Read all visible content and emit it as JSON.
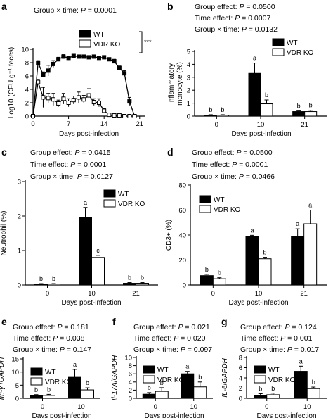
{
  "chart_data": [
    {
      "panel": "a",
      "type": "line",
      "stats": [
        "Group × time: P = 0.0001"
      ],
      "significance": "***",
      "xlabel": "Days post-infection",
      "ylabel": "Log10 (CFU g⁻¹ feces)",
      "xlim": [
        0,
        22
      ],
      "ylim": [
        0,
        10
      ],
      "xticks": [
        0,
        7,
        14,
        21
      ],
      "xtick_labels": [
        "0",
        "7",
        "14",
        "21"
      ],
      "yticks": [
        0,
        2,
        4,
        6,
        8,
        10
      ],
      "ytick_labels": [
        "0",
        "2",
        "4",
        "6",
        "8",
        "10"
      ],
      "legend": [
        "WT",
        "VDR KO"
      ],
      "series": [
        {
          "name": "WT",
          "marker": "filled-square",
          "x": [
            0,
            1,
            2,
            3,
            4,
            5,
            6,
            7,
            8,
            9,
            10,
            11,
            12,
            13,
            14,
            15,
            16,
            17,
            18,
            19,
            20
          ],
          "y": [
            0,
            8.0,
            6.2,
            6.8,
            7.8,
            8.5,
            8.9,
            8.7,
            9.0,
            8.9,
            8.9,
            8.8,
            8.9,
            8.7,
            8.8,
            8.5,
            8.2,
            7.2,
            6.4,
            2.2,
            0
          ],
          "err": [
            0,
            0.3,
            0.4,
            0.8,
            0.5,
            0.3,
            0.3,
            0.3,
            0.2,
            0.2,
            0.2,
            0.2,
            0.2,
            0.2,
            0.2,
            0.2,
            0.3,
            0.3,
            0.4,
            0.6,
            0
          ]
        },
        {
          "name": "VDR KO",
          "marker": "open-square",
          "x": [
            0,
            1,
            2,
            3,
            4,
            5,
            6,
            7,
            8,
            9,
            10,
            11,
            12,
            13,
            14,
            15,
            16,
            17,
            18,
            19,
            20
          ],
          "y": [
            0,
            5.1,
            2.8,
            2.7,
            2.5,
            1.9,
            2.6,
            2.0,
            2.4,
            2.8,
            2.5,
            3.1,
            2.1,
            2.0,
            0.8,
            0.2,
            0.1,
            0.1,
            0,
            0,
            0
          ],
          "err": [
            0,
            0.4,
            1.5,
            0.7,
            0.9,
            0.5,
            0.8,
            0.6,
            0.6,
            0.8,
            0.6,
            1.0,
            0.5,
            0.6,
            0.3,
            0.2,
            0.1,
            0.1,
            0,
            0,
            0
          ]
        }
      ]
    },
    {
      "panel": "b",
      "type": "bar",
      "stats": [
        "Group effect: P = 0.0500",
        "Time effect: P = 0.0007",
        "Group × time: P = 0.0132"
      ],
      "xlabel": "Days post-infection",
      "ylabel": "Inflammatory monocyte (%)",
      "categories": [
        "0",
        "10",
        "21"
      ],
      "ylim": [
        0,
        5
      ],
      "yticks": [
        0,
        1,
        2,
        3,
        4,
        5
      ],
      "ytick_labels": [
        "0",
        "1",
        "2",
        "3",
        "4",
        "5"
      ],
      "legend": [
        "WT",
        "VDR KO"
      ],
      "series": [
        {
          "name": "WT",
          "values": [
            0.08,
            3.3,
            0.35
          ],
          "err": [
            0.03,
            0.8,
            0.05
          ]
        },
        {
          "name": "VDR KO",
          "values": [
            0.08,
            0.95,
            0.35
          ],
          "err": [
            0.03,
            0.3,
            0.1
          ]
        }
      ],
      "labels": [
        [
          "b",
          "b"
        ],
        [
          "a",
          "b"
        ],
        [
          "b",
          "b"
        ]
      ]
    },
    {
      "panel": "c",
      "type": "bar",
      "stats": [
        "Group effect: P = 0.0415",
        "Time effect: P = 0.0001",
        "Group × time: P = 0.0127"
      ],
      "xlabel": "Days post-infection",
      "ylabel": "Neutrophil (%)",
      "categories": [
        "0",
        "10",
        "21"
      ],
      "ylim": [
        0,
        3
      ],
      "yticks": [
        0,
        1,
        2,
        3
      ],
      "ytick_labels": [
        "0",
        "1",
        "2",
        "3"
      ],
      "legend": [
        "WT",
        "VDR KO"
      ],
      "series": [
        {
          "name": "WT",
          "values": [
            0.03,
            1.95,
            0.05
          ],
          "err": [
            0.01,
            0.3,
            0.02
          ]
        },
        {
          "name": "VDR KO",
          "values": [
            0.03,
            0.8,
            0.05
          ],
          "err": [
            0.01,
            0.06,
            0.02
          ]
        }
      ],
      "labels": [
        [
          "b",
          "b"
        ],
        [
          "a",
          "c"
        ],
        [
          "b",
          "b"
        ]
      ]
    },
    {
      "panel": "d",
      "type": "bar",
      "stats": [
        "Group effect: P = 0.0500",
        "Time effect: P = 0.0001",
        "Group × time: P = 0.0466"
      ],
      "xlabel": "Days post-infection",
      "ylabel": "CD3+ (%)",
      "categories": [
        "0",
        "10",
        "21"
      ],
      "ylim": [
        0,
        80
      ],
      "yticks": [
        0,
        20,
        40,
        60,
        80
      ],
      "ytick_labels": [
        "0",
        "20",
        "40",
        "60",
        "80"
      ],
      "legend": [
        "WT",
        "VDR KO"
      ],
      "series": [
        {
          "name": "WT",
          "values": [
            7.5,
            39,
            39
          ],
          "err": [
            1.0,
            0.8,
            6
          ]
        },
        {
          "name": "VDR KO",
          "values": [
            5.0,
            21,
            49
          ],
          "err": [
            0.8,
            1.2,
            11
          ]
        }
      ],
      "labels": [
        [
          "b",
          "b"
        ],
        [
          "a",
          "b"
        ],
        [
          "a",
          "a"
        ]
      ]
    },
    {
      "panel": "e",
      "type": "bar",
      "stats": [
        "Group effect: P = 0.181",
        "Time effect: P = 0.038",
        "Group × time: P = 0.147"
      ],
      "xlabel": "Days post-infection",
      "ylabel": "Ifn-γ /GAPDH",
      "categories": [
        "0",
        "10"
      ],
      "ylim": [
        0,
        15
      ],
      "yticks": [
        0,
        5,
        10,
        15
      ],
      "ytick_labels": [
        "0",
        "5",
        "10",
        "15"
      ],
      "legend": [
        "WT",
        "VDR KO"
      ],
      "series": [
        {
          "name": "WT",
          "values": [
            1.0,
            8.0
          ],
          "err": [
            0.4,
            3.0
          ]
        },
        {
          "name": "VDR KO",
          "values": [
            1.1,
            3.2
          ],
          "err": [
            0.4,
            0.8
          ]
        }
      ],
      "labels": [
        [
          "b",
          "b"
        ],
        [
          "a",
          "b"
        ]
      ]
    },
    {
      "panel": "f",
      "type": "bar",
      "stats": [
        "Group effect: P = 0.021",
        "Time effect: P = 0.020",
        "Group × time: P = 0.097"
      ],
      "xlabel": "Days post-infection",
      "ylabel": "Il-17A/GAPDH",
      "categories": [
        "0",
        "10"
      ],
      "ylim": [
        0,
        10
      ],
      "yticks": [
        0,
        2,
        4,
        6,
        8,
        10
      ],
      "ytick_labels": [
        "0",
        "2",
        "4",
        "6",
        "8",
        "10"
      ],
      "legend": [
        "WT",
        "VDR KO"
      ],
      "series": [
        {
          "name": "WT",
          "values": [
            1.0,
            6.0
          ],
          "err": [
            0.4,
            0.6
          ]
        },
        {
          "name": "VDR KO",
          "values": [
            1.7,
            2.8
          ],
          "err": [
            0.9,
            1.2
          ]
        }
      ],
      "labels": [
        [
          "b",
          "b"
        ],
        [
          "a",
          "b"
        ]
      ]
    },
    {
      "panel": "g",
      "type": "bar",
      "stats": [
        "Group effect: P = 0.124",
        "Time effect: P = 0.001",
        "Group × time: P = 0.017"
      ],
      "xlabel": "Days post-infection",
      "ylabel": "IL-6/GAPDH",
      "categories": [
        "0",
        "10"
      ],
      "ylim": [
        0,
        8
      ],
      "yticks": [
        0,
        2,
        4,
        6,
        8
      ],
      "ytick_labels": [
        "0",
        "2",
        "4",
        "6",
        "8"
      ],
      "legend": [
        "WT",
        "VDR KO"
      ],
      "series": [
        {
          "name": "WT",
          "values": [
            0.6,
            5.3
          ],
          "err": [
            0.3,
            1.0
          ]
        },
        {
          "name": "VDR KO",
          "values": [
            0.7,
            1.9
          ],
          "err": [
            0.3,
            0.3
          ]
        }
      ],
      "labels": [
        [
          "b",
          "b"
        ],
        [
          "a",
          "b"
        ]
      ]
    }
  ]
}
